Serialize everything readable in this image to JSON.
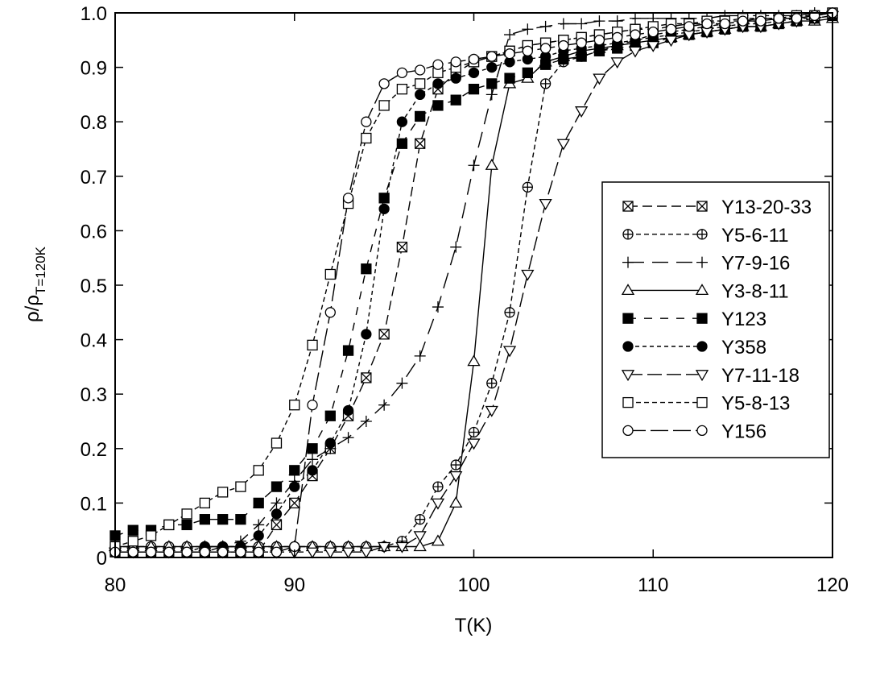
{
  "chart_data": {
    "type": "line",
    "xlabel": "T(K)",
    "ylabel": {
      "main": "ρ/ρ",
      "sub": "T=120K"
    },
    "xlim": [
      80,
      120
    ],
    "ylim": [
      0,
      1.0
    ],
    "xticks": [
      {
        "value": 80,
        "label": "80"
      },
      {
        "value": 90,
        "label": "90"
      },
      {
        "value": 100,
        "label": "100"
      },
      {
        "value": 110,
        "label": "110"
      },
      {
        "value": 120,
        "label": "120"
      }
    ],
    "yticks": [
      {
        "value": 0,
        "label": "0"
      },
      {
        "value": 0.1,
        "label": "0.1"
      },
      {
        "value": 0.2,
        "label": "0.2"
      },
      {
        "value": 0.3,
        "label": "0.3"
      },
      {
        "value": 0.4,
        "label": "0.4"
      },
      {
        "value": 0.5,
        "label": "0.5"
      },
      {
        "value": 0.6,
        "label": "0.6"
      },
      {
        "value": 0.7,
        "label": "0.7"
      },
      {
        "value": 0.8,
        "label": "0.8"
      },
      {
        "value": 0.9,
        "label": "0.9"
      },
      {
        "value": 1.0,
        "label": "1.0"
      }
    ],
    "grid": false,
    "legend_position": "right",
    "series": [
      {
        "name": "Y13-20-33",
        "marker": "boxx",
        "dash": "12,6",
        "x": [
          80,
          81,
          82,
          83,
          84,
          85,
          86,
          87,
          88,
          89,
          90,
          91,
          92,
          93,
          94,
          95,
          96,
          97,
          98,
          99,
          100,
          101,
          102,
          103,
          104,
          105,
          106,
          107,
          108,
          109,
          110,
          111,
          112,
          113,
          114,
          115,
          116,
          117,
          118,
          119,
          120
        ],
        "y": [
          0.01,
          0.01,
          0.01,
          0.01,
          0.01,
          0.01,
          0.01,
          0.01,
          0.01,
          0.06,
          0.1,
          0.15,
          0.2,
          0.26,
          0.33,
          0.41,
          0.57,
          0.76,
          0.86,
          0.89,
          0.91,
          0.92,
          0.93,
          0.94,
          0.945,
          0.95,
          0.955,
          0.96,
          0.965,
          0.97,
          0.97,
          0.975,
          0.98,
          0.98,
          0.985,
          0.985,
          0.99,
          0.99,
          0.99,
          0.995,
          1.0
        ]
      },
      {
        "name": "Y5-6-11",
        "marker": "circleplus",
        "dash": "6,4",
        "x": [
          80,
          81,
          82,
          83,
          84,
          85,
          86,
          87,
          88,
          89,
          90,
          91,
          92,
          93,
          94,
          95,
          96,
          97,
          98,
          99,
          100,
          101,
          102,
          103,
          104,
          105,
          106,
          107,
          108,
          109,
          110,
          111,
          112,
          113,
          114,
          115,
          116,
          117,
          118,
          119,
          120
        ],
        "y": [
          0.02,
          0.02,
          0.02,
          0.02,
          0.02,
          0.02,
          0.02,
          0.02,
          0.02,
          0.02,
          0.02,
          0.02,
          0.02,
          0.02,
          0.02,
          0.02,
          0.03,
          0.07,
          0.13,
          0.17,
          0.23,
          0.32,
          0.45,
          0.68,
          0.87,
          0.91,
          0.92,
          0.93,
          0.94,
          0.95,
          0.96,
          0.965,
          0.97,
          0.975,
          0.98,
          0.985,
          0.985,
          0.99,
          0.99,
          0.995,
          1.0
        ]
      },
      {
        "name": "Y7-9-16",
        "marker": "plus",
        "dash": "20,10",
        "x": [
          80,
          81,
          82,
          83,
          84,
          85,
          86,
          87,
          88,
          89,
          90,
          91,
          92,
          93,
          94,
          95,
          96,
          97,
          98,
          99,
          100,
          101,
          102,
          103,
          104,
          105,
          106,
          107,
          108,
          109,
          110,
          111,
          112,
          113,
          114,
          115,
          116,
          117,
          118,
          119,
          120
        ],
        "y": [
          0.01,
          0.01,
          0.01,
          0.01,
          0.01,
          0.01,
          0.02,
          0.03,
          0.06,
          0.1,
          0.14,
          0.18,
          0.2,
          0.22,
          0.25,
          0.28,
          0.32,
          0.37,
          0.46,
          0.57,
          0.72,
          0.85,
          0.96,
          0.97,
          0.975,
          0.98,
          0.98,
          0.985,
          0.985,
          0.99,
          0.99,
          0.99,
          0.99,
          0.99,
          0.995,
          0.995,
          0.995,
          0.995,
          0.995,
          1.0,
          1.0
        ]
      },
      {
        "name": "Y3-8-11",
        "marker": "triangle",
        "dash": "",
        "x": [
          80,
          81,
          82,
          83,
          84,
          85,
          86,
          87,
          88,
          89,
          90,
          91,
          92,
          93,
          94,
          95,
          96,
          97,
          98,
          99,
          100,
          101,
          102,
          103,
          104,
          105,
          106,
          107,
          108,
          109,
          110,
          111,
          112,
          113,
          114,
          115,
          116,
          117,
          118,
          119,
          120
        ],
        "y": [
          0.02,
          0.02,
          0.02,
          0.02,
          0.02,
          0.02,
          0.02,
          0.02,
          0.02,
          0.02,
          0.02,
          0.02,
          0.02,
          0.02,
          0.02,
          0.02,
          0.02,
          0.02,
          0.03,
          0.1,
          0.36,
          0.72,
          0.87,
          0.88,
          0.91,
          0.92,
          0.93,
          0.935,
          0.94,
          0.945,
          0.95,
          0.955,
          0.96,
          0.965,
          0.97,
          0.975,
          0.975,
          0.98,
          0.985,
          0.985,
          0.99
        ]
      },
      {
        "name": "Y123",
        "marker": "filledsquare",
        "dash": "10,10",
        "x": [
          80,
          81,
          82,
          83,
          84,
          85,
          86,
          87,
          88,
          89,
          90,
          91,
          92,
          93,
          94,
          95,
          96,
          97,
          98,
          99,
          100,
          101,
          102,
          103,
          104,
          105,
          106,
          107,
          108,
          109,
          110,
          111,
          112,
          113,
          114,
          115,
          116,
          117,
          118,
          119,
          120
        ],
        "y": [
          0.04,
          0.05,
          0.05,
          0.06,
          0.06,
          0.07,
          0.07,
          0.07,
          0.1,
          0.13,
          0.16,
          0.2,
          0.26,
          0.38,
          0.53,
          0.66,
          0.76,
          0.81,
          0.83,
          0.84,
          0.86,
          0.87,
          0.88,
          0.89,
          0.905,
          0.915,
          0.92,
          0.93,
          0.935,
          0.94,
          0.945,
          0.955,
          0.96,
          0.965,
          0.97,
          0.975,
          0.975,
          0.98,
          0.985,
          0.99,
          0.995
        ]
      },
      {
        "name": "Y358",
        "marker": "filledcircle",
        "dash": "5,4",
        "x": [
          80,
          81,
          82,
          83,
          84,
          85,
          86,
          87,
          88,
          89,
          90,
          91,
          92,
          93,
          94,
          95,
          96,
          97,
          98,
          99,
          100,
          101,
          102,
          103,
          104,
          105,
          106,
          107,
          108,
          109,
          110,
          111,
          112,
          113,
          114,
          115,
          116,
          117,
          118,
          119,
          120
        ],
        "y": [
          0.01,
          0.01,
          0.01,
          0.01,
          0.01,
          0.02,
          0.02,
          0.02,
          0.04,
          0.08,
          0.13,
          0.16,
          0.21,
          0.27,
          0.41,
          0.64,
          0.8,
          0.85,
          0.87,
          0.88,
          0.89,
          0.9,
          0.91,
          0.915,
          0.92,
          0.93,
          0.935,
          0.94,
          0.945,
          0.95,
          0.955,
          0.96,
          0.965,
          0.97,
          0.975,
          0.98,
          0.98,
          0.985,
          0.99,
          0.99,
          0.995
        ]
      },
      {
        "name": "Y7-11-18",
        "marker": "downtriangle",
        "dash": "18,6",
        "x": [
          80,
          81,
          82,
          83,
          84,
          85,
          86,
          87,
          88,
          89,
          90,
          91,
          92,
          93,
          94,
          95,
          96,
          97,
          98,
          99,
          100,
          101,
          102,
          103,
          104,
          105,
          106,
          107,
          108,
          109,
          110,
          111,
          112,
          113,
          114,
          115,
          116,
          117,
          118,
          119,
          120
        ],
        "y": [
          0.01,
          0.01,
          0.01,
          0.01,
          0.01,
          0.01,
          0.01,
          0.01,
          0.01,
          0.01,
          0.01,
          0.01,
          0.01,
          0.01,
          0.01,
          0.02,
          0.02,
          0.04,
          0.1,
          0.15,
          0.21,
          0.27,
          0.38,
          0.52,
          0.65,
          0.76,
          0.82,
          0.88,
          0.91,
          0.93,
          0.94,
          0.95,
          0.96,
          0.965,
          0.97,
          0.975,
          0.975,
          0.98,
          0.985,
          0.99,
          0.995
        ]
      },
      {
        "name": "Y5-8-13",
        "marker": "square",
        "dash": "6,4",
        "x": [
          80,
          81,
          82,
          83,
          84,
          85,
          86,
          87,
          88,
          89,
          90,
          91,
          92,
          93,
          94,
          95,
          96,
          97,
          98,
          99,
          100,
          101,
          102,
          103,
          104,
          105,
          106,
          107,
          108,
          109,
          110,
          111,
          112,
          113,
          114,
          115,
          116,
          117,
          118,
          119,
          120
        ],
        "y": [
          0.02,
          0.03,
          0.04,
          0.06,
          0.08,
          0.1,
          0.12,
          0.13,
          0.16,
          0.21,
          0.28,
          0.39,
          0.52,
          0.65,
          0.77,
          0.83,
          0.86,
          0.87,
          0.89,
          0.9,
          0.91,
          0.92,
          0.93,
          0.94,
          0.945,
          0.95,
          0.955,
          0.96,
          0.965,
          0.97,
          0.975,
          0.98,
          0.98,
          0.985,
          0.985,
          0.99,
          0.99,
          0.99,
          0.995,
          0.995,
          1.0
        ]
      },
      {
        "name": "Y156",
        "marker": "circle",
        "dash": "22,6",
        "x": [
          80,
          81,
          82,
          83,
          84,
          85,
          86,
          87,
          88,
          89,
          90,
          91,
          92,
          93,
          94,
          95,
          96,
          97,
          98,
          99,
          100,
          101,
          102,
          103,
          104,
          105,
          106,
          107,
          108,
          109,
          110,
          111,
          112,
          113,
          114,
          115,
          116,
          117,
          118,
          119,
          120
        ],
        "y": [
          0.01,
          0.01,
          0.01,
          0.01,
          0.01,
          0.01,
          0.01,
          0.01,
          0.01,
          0.01,
          0.02,
          0.28,
          0.45,
          0.66,
          0.8,
          0.87,
          0.89,
          0.895,
          0.905,
          0.91,
          0.915,
          0.92,
          0.925,
          0.93,
          0.935,
          0.94,
          0.945,
          0.95,
          0.955,
          0.96,
          0.965,
          0.97,
          0.975,
          0.98,
          0.98,
          0.985,
          0.985,
          0.99,
          0.99,
          0.995,
          1.0
        ]
      }
    ]
  }
}
